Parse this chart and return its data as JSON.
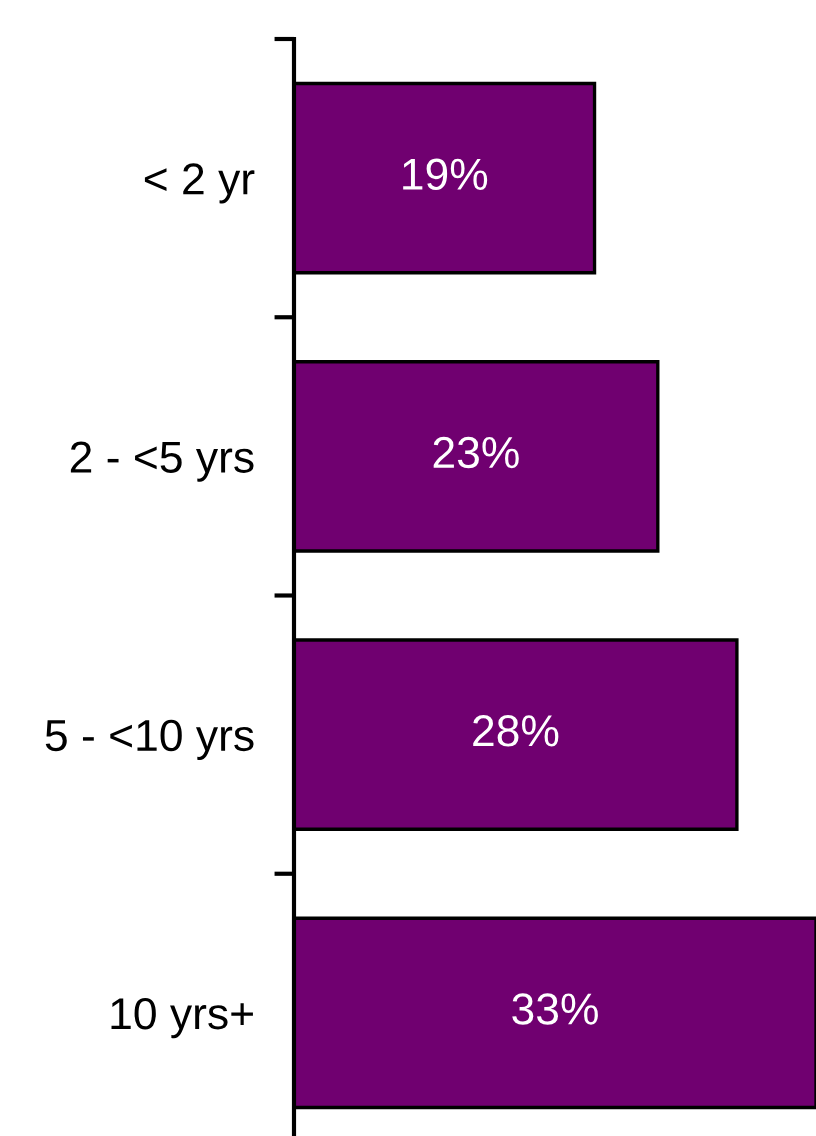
{
  "chart_data": {
    "type": "bar",
    "orientation": "horizontal",
    "categories": [
      "< 2 yr",
      "2 - <5 yrs",
      "5 - <10 yrs",
      "10 yrs+"
    ],
    "values": [
      19,
      23,
      28,
      33
    ],
    "value_labels": [
      "19%",
      "23%",
      "28%",
      "33%"
    ],
    "color": "#700070",
    "xlim": [
      0,
      33
    ],
    "tick_labels": "y"
  }
}
